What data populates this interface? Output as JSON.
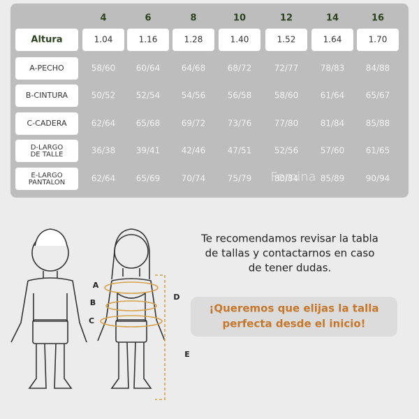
{
  "table": {
    "sizes": [
      "4",
      "6",
      "8",
      "10",
      "12",
      "14",
      "16"
    ],
    "rows": [
      {
        "label": [
          "Altura"
        ],
        "values": [
          "1.04",
          "1.16",
          "1.28",
          "1.40",
          "1.52",
          "1.64",
          "1.70"
        ]
      },
      {
        "label": [
          "A-PECHO"
        ],
        "values": [
          "58/60",
          "60/64",
          "64/68",
          "68/72",
          "72/77",
          "78/83",
          "84/88"
        ]
      },
      {
        "label": [
          "B-CINTURA"
        ],
        "values": [
          "50/52",
          "52/54",
          "54/56",
          "56/58",
          "58/60",
          "61/64",
          "65/67"
        ]
      },
      {
        "label": [
          "C-CADERA"
        ],
        "values": [
          "62/64",
          "65/68",
          "69/72",
          "73/76",
          "77/80",
          "81/84",
          "85/88"
        ]
      },
      {
        "label": [
          "D-LARGO",
          "DE TALLE"
        ],
        "values": [
          "36/38",
          "39/41",
          "42/46",
          "47/51",
          "52/56",
          "57/60",
          "61/65"
        ]
      },
      {
        "label": [
          "E-LARGO",
          "PANTALON"
        ],
        "values": [
          "62/64",
          "65/69",
          "70/74",
          "75/79",
          "80/84",
          "85/89",
          "90/94"
        ]
      }
    ],
    "watermark": "Femina"
  },
  "illustration": {
    "markers": [
      "A",
      "B",
      "C",
      "D",
      "E"
    ]
  },
  "message": {
    "lines": [
      "Te recomendamos revisar la tabla",
      "de tallas y contactarnos en caso",
      "de tener dudas."
    ],
    "callout": [
      "¡Queremos que elijas la talla",
      "perfecta desde el inicio!"
    ]
  }
}
